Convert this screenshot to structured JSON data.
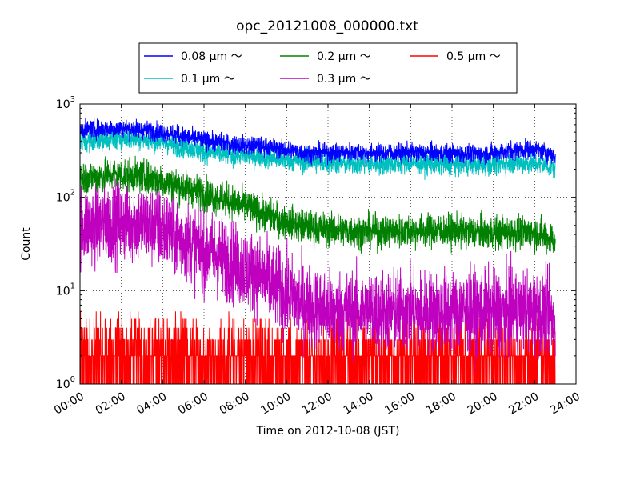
{
  "chart_data": {
    "type": "line",
    "title": "opc_20121008_000000.txt",
    "xlabel": "Time on 2012-10-08 (JST)",
    "ylabel": "Count",
    "xlim": [
      "00:00",
      "24:00"
    ],
    "x_ticks": [
      "00:00",
      "02:00",
      "04:00",
      "06:00",
      "08:00",
      "10:00",
      "12:00",
      "14:00",
      "16:00",
      "18:00",
      "20:00",
      "22:00",
      "24:00"
    ],
    "yscale": "log",
    "ylim": [
      1,
      1000
    ],
    "y_ticks": [
      {
        "value": 1,
        "base": "10",
        "exp": "0"
      },
      {
        "value": 10,
        "base": "10",
        "exp": "1"
      },
      {
        "value": 100,
        "base": "10",
        "exp": "2"
      },
      {
        "value": 1000,
        "base": "10",
        "exp": "3"
      }
    ],
    "grid": true,
    "legend_position": "top-center",
    "series": [
      {
        "name": "0.08 μm ～",
        "color": "#0000ff",
        "noise": 0.05,
        "x": [
          "00:00",
          "01:00",
          "02:00",
          "03:00",
          "04:00",
          "05:00",
          "06:00",
          "07:00",
          "08:00",
          "09:00",
          "10:00",
          "11:00",
          "12:00",
          "13:00",
          "14:00",
          "15:00",
          "16:00",
          "17:00",
          "18:00",
          "19:00",
          "20:00",
          "21:00",
          "22:00",
          "23:00"
        ],
        "y": [
          530,
          540,
          550,
          530,
          500,
          450,
          410,
          380,
          360,
          350,
          320,
          300,
          300,
          305,
          300,
          300,
          305,
          300,
          295,
          290,
          300,
          320,
          330,
          280
        ]
      },
      {
        "name": "0.1 μm ～",
        "color": "#00bfbf",
        "noise": 0.06,
        "x": [
          "00:00",
          "01:00",
          "02:00",
          "03:00",
          "04:00",
          "05:00",
          "06:00",
          "07:00",
          "08:00",
          "09:00",
          "10:00",
          "11:00",
          "12:00",
          "13:00",
          "14:00",
          "15:00",
          "16:00",
          "17:00",
          "18:00",
          "19:00",
          "20:00",
          "21:00",
          "22:00",
          "23:00"
        ],
        "y": [
          400,
          420,
          430,
          420,
          390,
          350,
          310,
          290,
          280,
          270,
          250,
          240,
          235,
          230,
          230,
          230,
          235,
          230,
          225,
          225,
          230,
          235,
          230,
          210
        ]
      },
      {
        "name": "0.2 μm ～",
        "color": "#008000",
        "noise": 0.09,
        "x": [
          "00:00",
          "01:00",
          "02:00",
          "03:00",
          "04:00",
          "05:00",
          "06:00",
          "07:00",
          "08:00",
          "09:00",
          "10:00",
          "11:00",
          "12:00",
          "13:00",
          "14:00",
          "15:00",
          "16:00",
          "17:00",
          "18:00",
          "19:00",
          "20:00",
          "21:00",
          "22:00",
          "23:00"
        ],
        "y": [
          160,
          170,
          175,
          165,
          150,
          130,
          110,
          95,
          80,
          65,
          55,
          48,
          45,
          44,
          43,
          43,
          44,
          44,
          43,
          43,
          42,
          42,
          42,
          35
        ]
      },
      {
        "name": "0.3 μm ～",
        "color": "#bf00bf",
        "noise": 0.22,
        "x": [
          "00:00",
          "01:00",
          "02:00",
          "03:00",
          "04:00",
          "05:00",
          "06:00",
          "07:00",
          "08:00",
          "09:00",
          "10:00",
          "11:00",
          "12:00",
          "13:00",
          "14:00",
          "15:00",
          "16:00",
          "17:00",
          "18:00",
          "19:00",
          "20:00",
          "21:00",
          "22:00",
          "23:00"
        ],
        "y": [
          50,
          52,
          55,
          52,
          45,
          35,
          27,
          22,
          17,
          13,
          9,
          7,
          6,
          6,
          6,
          6,
          6,
          6,
          6,
          6,
          6,
          6,
          6,
          5
        ]
      },
      {
        "name": "0.5 μm ～",
        "color": "#ff0000",
        "noise": 0,
        "x": [
          "00:00",
          "01:00",
          "02:00",
          "03:00",
          "04:00",
          "05:00",
          "06:00",
          "07:00",
          "08:00",
          "09:00",
          "10:00",
          "11:00",
          "12:00",
          "13:00",
          "14:00",
          "15:00",
          "16:00",
          "17:00",
          "18:00",
          "19:00",
          "20:00",
          "21:00",
          "22:00",
          "23:00"
        ],
        "y": [
          2.5,
          2.5,
          2.5,
          2.3,
          2.0,
          2.0,
          1.8,
          1.7,
          1.6,
          1.5,
          1.4,
          1.4,
          1.4,
          1.4,
          1.4,
          1.4,
          1.4,
          1.4,
          1.4,
          1.4,
          1.4,
          1.4,
          1.4,
          1.4
        ]
      }
    ],
    "x_end_time": "23:00"
  }
}
